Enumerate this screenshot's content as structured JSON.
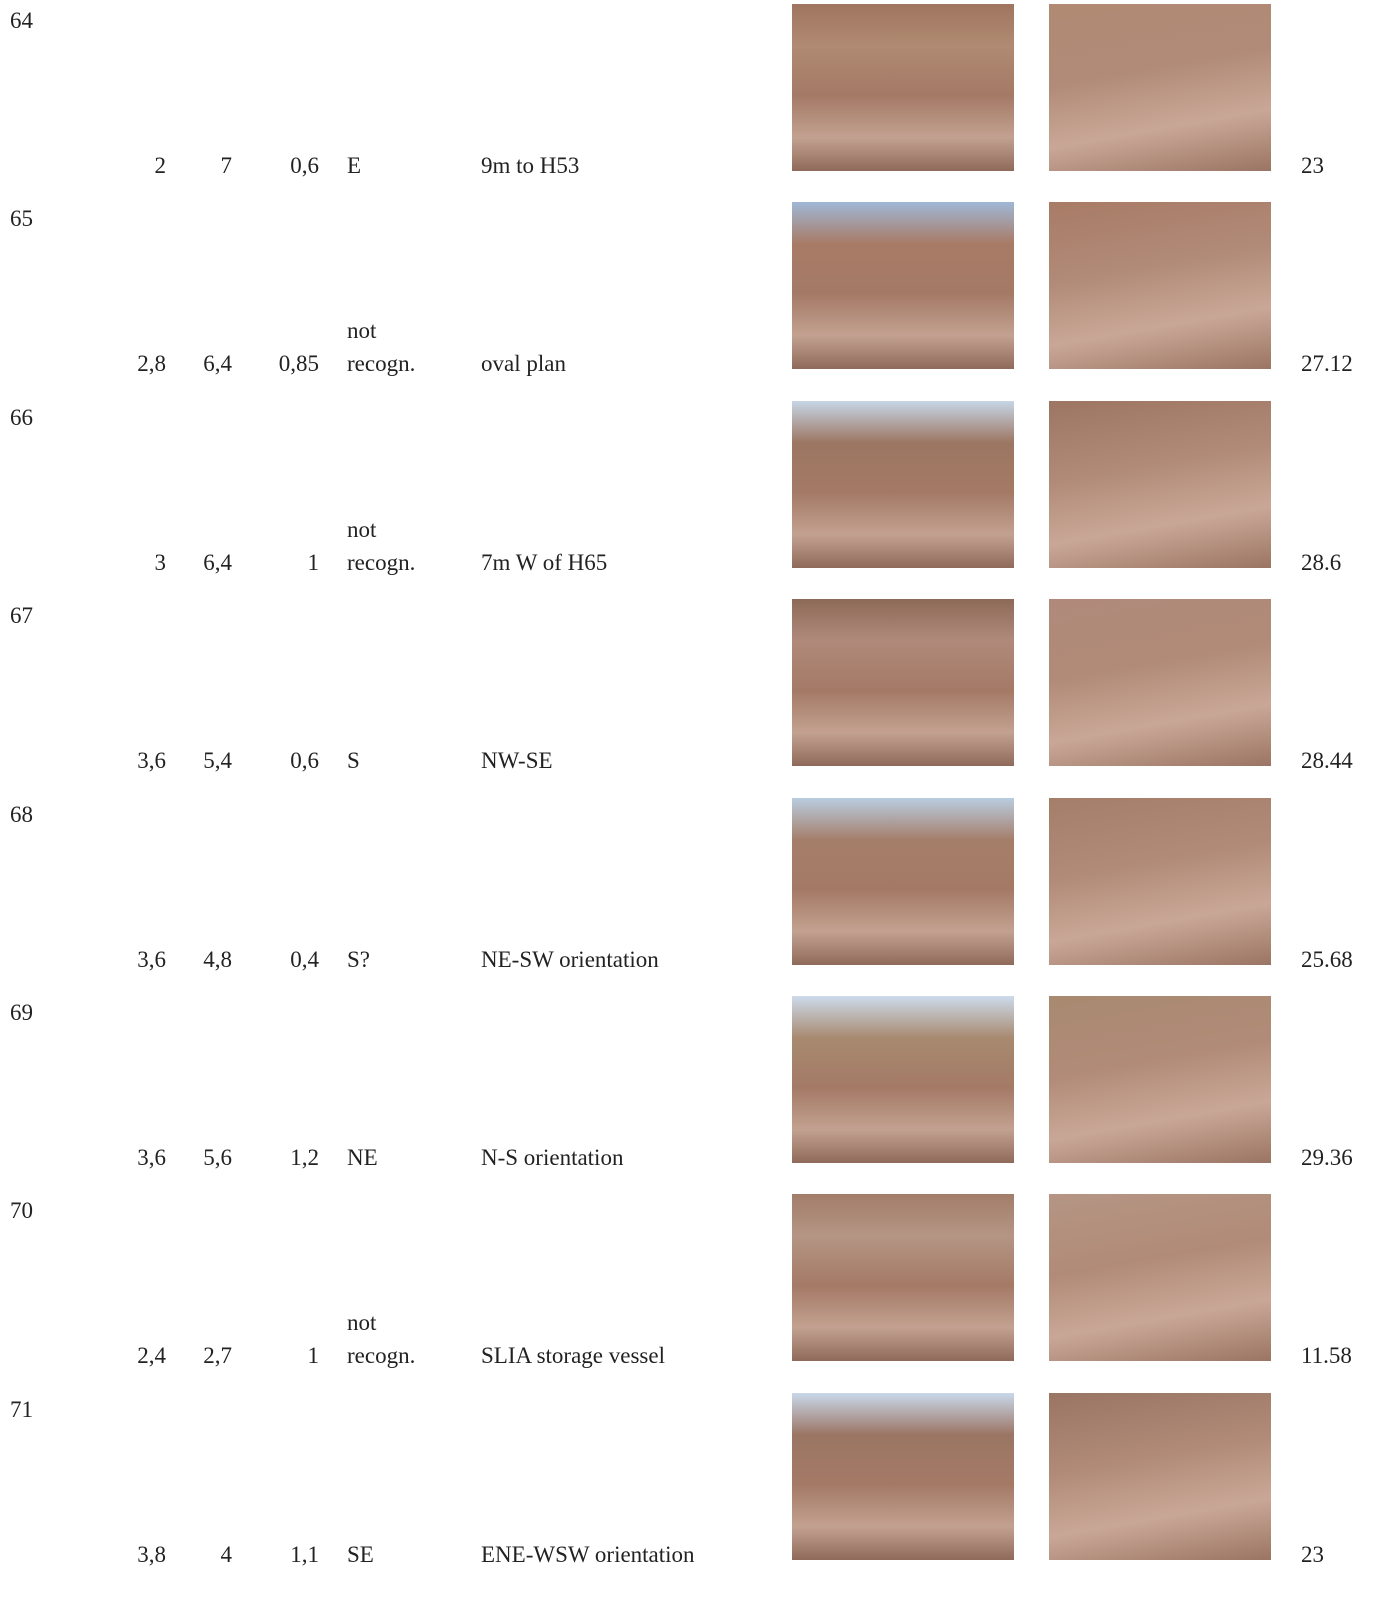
{
  "rows": [
    {
      "id": "64",
      "width": "2",
      "length": "7",
      "height": "0,6",
      "entrance": "E",
      "notes": "9m to H53",
      "area": "23"
    },
    {
      "id": "65",
      "width": "2,8",
      "length": "6,4",
      "height": "0,85",
      "entrance": "not recogn.",
      "notes": "oval plan",
      "area": "27.12"
    },
    {
      "id": "66",
      "width": "3",
      "length": "6,4",
      "height": "1",
      "entrance": "not recogn.",
      "notes": "7m W of H65",
      "area": "28.6"
    },
    {
      "id": "67",
      "width": "3,6",
      "length": "5,4",
      "height": "0,6",
      "entrance": "S",
      "notes": "NW-SE",
      "area": "28.44"
    },
    {
      "id": "68",
      "width": "3,6",
      "length": "4,8",
      "height": "0,4",
      "entrance": "S?",
      "notes": "NE-SW orientation",
      "area": "25.68"
    },
    {
      "id": "69",
      "width": "3,6",
      "length": "5,6",
      "height": "1,2",
      "entrance": "NE",
      "notes": "N-S orientation",
      "area": "29.36"
    },
    {
      "id": "70",
      "width": "2,4",
      "length": "2,7",
      "height": "1",
      "entrance": "not recogn.",
      "notes": "SLIA storage vessel",
      "area": "11.58"
    },
    {
      "id": "71",
      "width": "3,8",
      "length": "4",
      "height": "1,1",
      "entrance": "SE",
      "notes": "ENE-WSW orientation",
      "area": "23"
    }
  ]
}
